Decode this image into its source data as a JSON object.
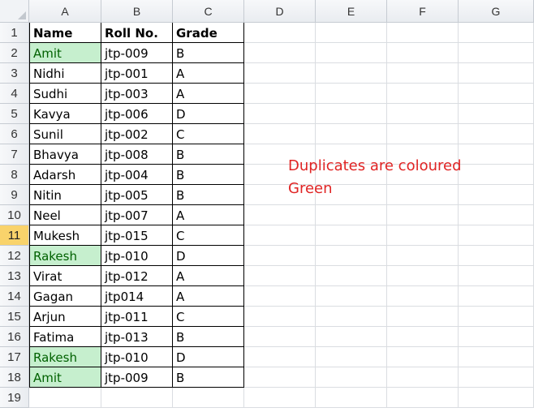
{
  "columns": [
    "A",
    "B",
    "C",
    "D",
    "E",
    "F",
    "G"
  ],
  "rows": [
    "1",
    "2",
    "3",
    "4",
    "5",
    "6",
    "7",
    "8",
    "9",
    "10",
    "11",
    "12",
    "13",
    "14",
    "15",
    "16",
    "17",
    "18",
    "19"
  ],
  "active_row": "11",
  "header": [
    "Name",
    "Roll No.",
    "Grade"
  ],
  "records": [
    {
      "name": "Amit",
      "roll": "jtp-009",
      "grade": "B",
      "duplicate": true
    },
    {
      "name": "Nidhi",
      "roll": "jtp-001",
      "grade": "A",
      "duplicate": false
    },
    {
      "name": "Sudhi",
      "roll": "jtp-003",
      "grade": "A",
      "duplicate": false
    },
    {
      "name": "Kavya",
      "roll": "jtp-006",
      "grade": "D",
      "duplicate": false
    },
    {
      "name": "Sunil",
      "roll": "jtp-002",
      "grade": "C",
      "duplicate": false
    },
    {
      "name": "Bhavya",
      "roll": "jtp-008",
      "grade": "B",
      "duplicate": false
    },
    {
      "name": "Adarsh",
      "roll": "jtp-004",
      "grade": "B",
      "duplicate": false
    },
    {
      "name": "Nitin",
      "roll": "jtp-005",
      "grade": "B",
      "duplicate": false
    },
    {
      "name": "Neel",
      "roll": "jtp-007",
      "grade": "A",
      "duplicate": false
    },
    {
      "name": "Mukesh",
      "roll": "jtp-015",
      "grade": "C",
      "duplicate": false
    },
    {
      "name": "Rakesh",
      "roll": "jtp-010",
      "grade": "D",
      "duplicate": true
    },
    {
      "name": "Virat",
      "roll": "jtp-012",
      "grade": "A",
      "duplicate": false
    },
    {
      "name": "Gagan",
      "roll": "jtp014",
      "grade": "A",
      "duplicate": false
    },
    {
      "name": "Arjun",
      "roll": "jtp-011",
      "grade": "C",
      "duplicate": false
    },
    {
      "name": "Fatima",
      "roll": "jtp-013",
      "grade": "B",
      "duplicate": false
    },
    {
      "name": "Rakesh",
      "roll": "jtp-010",
      "grade": "D",
      "duplicate": true
    },
    {
      "name": "Amit",
      "roll": "jtp-009",
      "grade": "B",
      "duplicate": true
    }
  ],
  "note_line1": "Duplicates are coloured",
  "note_line2": "Green",
  "colors": {
    "duplicate_fill": "#c6efce",
    "duplicate_text": "#006100",
    "note_text": "#e02424",
    "active_row_header": "#f9d36b"
  }
}
